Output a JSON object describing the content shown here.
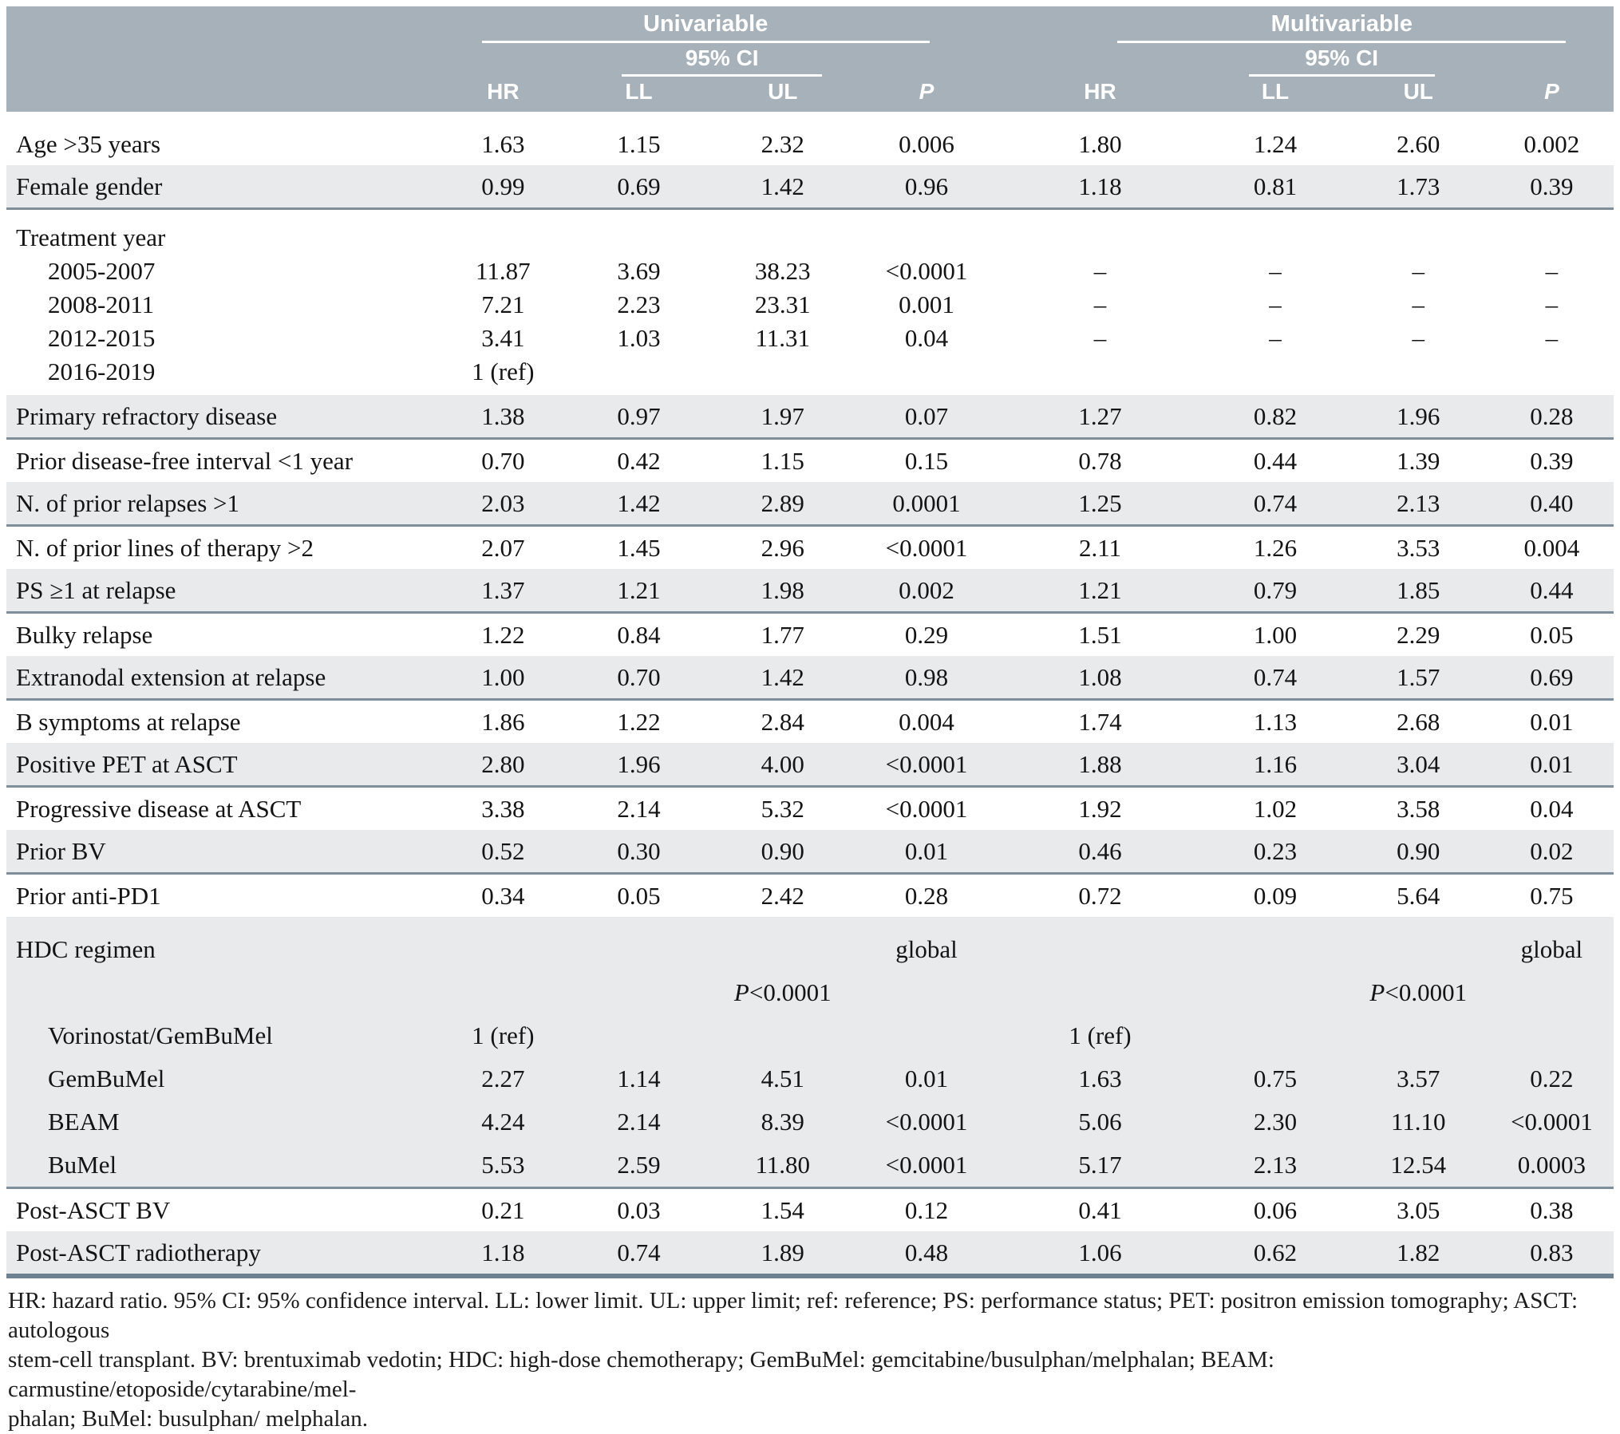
{
  "colors": {
    "header_bg": "#a7b1b9",
    "stripe_bg": "#e8eaec",
    "row_separator": "#7e8e9b",
    "bottom_border": "#6d8190"
  },
  "table": {
    "header": {
      "group_univariable": "Univariable",
      "group_multivariable": "Multivariable",
      "ci_label": "95% CI",
      "columns": {
        "hr": "HR",
        "ll": "LL",
        "ul": "UL",
        "p": "P"
      }
    },
    "rows": [
      {
        "label": "Age >35 years",
        "cells": [
          "1.63",
          "1.15",
          "2.32",
          "0.006",
          "1.80",
          "1.24",
          "2.60",
          "0.002"
        ],
        "shade": false,
        "pad_top": true
      },
      {
        "label": "Female gender",
        "cells": [
          "0.99",
          "0.69",
          "1.42",
          "0.96",
          "1.18",
          "0.81",
          "1.73",
          "0.39"
        ],
        "shade": true,
        "border": "thin"
      },
      {
        "label": "Treatment year",
        "cells": [
          "",
          "",
          "",
          "",
          "",
          "",
          "",
          ""
        ],
        "tight": true,
        "pad_top": true
      },
      {
        "label": "2005-2007",
        "indent": true,
        "cells": [
          "11.87",
          "3.69",
          "38.23",
          "<0.0001",
          "–",
          "–",
          "–",
          "–"
        ],
        "tight": true
      },
      {
        "label": "2008-2011",
        "indent": true,
        "cells": [
          "7.21",
          "2.23",
          "23.31",
          "0.001",
          "–",
          "–",
          "–",
          "–"
        ],
        "tight": true
      },
      {
        "label": "2012-2015",
        "indent": true,
        "cells": [
          "3.41",
          "1.03",
          "11.31",
          "0.04",
          "–",
          "–",
          "–",
          "–"
        ],
        "tight": true
      },
      {
        "label": "2016-2019",
        "indent": true,
        "cells": [
          "1 (ref)",
          "",
          "",
          "",
          "",
          "",
          "",
          ""
        ],
        "tight": true,
        "pad_bottom": true
      },
      {
        "label": "Primary refractory disease",
        "cells": [
          "1.38",
          "0.97",
          "1.97",
          "0.07",
          "1.27",
          "0.82",
          "1.96",
          "0.28"
        ],
        "shade": true,
        "border": "thin"
      },
      {
        "label": "Prior disease-free interval <1 year",
        "cells": [
          "0.70",
          "0.42",
          "1.15",
          "0.15",
          "0.78",
          "0.44",
          "1.39",
          "0.39"
        ]
      },
      {
        "label": "N. of prior relapses >1",
        "cells": [
          "2.03",
          "1.42",
          "2.89",
          "0.0001",
          "1.25",
          "0.74",
          "2.13",
          "0.40"
        ],
        "shade": true,
        "border": "thin"
      },
      {
        "label": "N. of prior lines of therapy >2",
        "cells": [
          "2.07",
          "1.45",
          "2.96",
          "<0.0001",
          "2.11",
          "1.26",
          "3.53",
          "0.004"
        ]
      },
      {
        "label": "PS ≥1 at relapse",
        "cells": [
          "1.37",
          "1.21",
          "1.98",
          "0.002",
          "1.21",
          "0.79",
          "1.85",
          "0.44"
        ],
        "shade": true,
        "border": "thin"
      },
      {
        "label": "Bulky relapse",
        "cells": [
          "1.22",
          "0.84",
          "1.77",
          "0.29",
          "1.51",
          "1.00",
          "2.29",
          "0.05"
        ]
      },
      {
        "label": "Extranodal extension at relapse",
        "cells": [
          "1.00",
          "0.70",
          "1.42",
          "0.98",
          "1.08",
          "0.74",
          "1.57",
          "0.69"
        ],
        "shade": true,
        "border": "thin"
      },
      {
        "label": "B symptoms at relapse",
        "cells": [
          "1.86",
          "1.22",
          "2.84",
          "0.004",
          "1.74",
          "1.13",
          "2.68",
          "0.01"
        ]
      },
      {
        "label": "Positive PET at ASCT",
        "cells": [
          "2.80",
          "1.96",
          "4.00",
          "<0.0001",
          "1.88",
          "1.16",
          "3.04",
          "0.01"
        ],
        "shade": true,
        "border": "thin"
      },
      {
        "label": "Progressive disease at ASCT",
        "cells": [
          "3.38",
          "2.14",
          "5.32",
          "<0.0001",
          "1.92",
          "1.02",
          "3.58",
          "0.04"
        ]
      },
      {
        "label": "Prior BV",
        "cells": [
          "0.52",
          "0.30",
          "0.90",
          "0.01",
          "0.46",
          "0.23",
          "0.90",
          "0.02"
        ],
        "shade": true,
        "border": "thin"
      },
      {
        "label": "Prior anti-PD1",
        "cells": [
          "0.34",
          "0.05",
          "2.42",
          "0.28",
          "0.72",
          "0.09",
          "5.64",
          "0.75"
        ]
      },
      {
        "label": "HDC regimen",
        "cells": [
          "",
          "",
          "",
          "global",
          "",
          "",
          "",
          "global"
        ],
        "shade": true,
        "roomy": true,
        "pad_top": true
      },
      {
        "label": "",
        "cells": [
          "",
          "",
          "P<0.0001",
          "",
          "",
          "",
          "P<0.0001",
          ""
        ],
        "shade": true,
        "roomy": true
      },
      {
        "label": "Vorinostat/GemBuMel",
        "indent": true,
        "cells": [
          "1 (ref)",
          "",
          "",
          "",
          "1 (ref)",
          "",
          "",
          ""
        ],
        "shade": true,
        "roomy": true
      },
      {
        "label": "GemBuMel",
        "indent": true,
        "cells": [
          "2.27",
          "1.14",
          "4.51",
          "0.01",
          "1.63",
          "0.75",
          "3.57",
          "0.22"
        ],
        "shade": true,
        "roomy": true
      },
      {
        "label": "BEAM",
        "indent": true,
        "cells": [
          "4.24",
          "2.14",
          "8.39",
          "<0.0001",
          "5.06",
          "2.30",
          "11.10",
          "<0.0001"
        ],
        "shade": true,
        "roomy": true
      },
      {
        "label": "BuMel",
        "indent": true,
        "cells": [
          "5.53",
          "2.59",
          "11.80",
          "<0.0001",
          "5.17",
          "2.13",
          "12.54",
          "0.0003"
        ],
        "shade": true,
        "roomy": true,
        "border": "thin"
      },
      {
        "label": "Post-ASCT BV",
        "cells": [
          "0.21",
          "0.03",
          "1.54",
          "0.12",
          "0.41",
          "0.06",
          "3.05",
          "0.38"
        ]
      },
      {
        "label": "Post-ASCT radiotherapy",
        "cells": [
          "1.18",
          "0.74",
          "1.89",
          "0.48",
          "1.06",
          "0.62",
          "1.82",
          "0.83"
        ],
        "shade": true,
        "border": "thick"
      }
    ],
    "footnote_lines": [
      "HR: hazard ratio. 95% CI: 95% confidence interval. LL: lower limit. UL: upper limit; ref: reference; PS: performance status; PET: positron emission tomography; ASCT: autologous",
      "stem-cell transplant. BV: brentuximab vedotin; HDC: high-dose chemotherapy; GemBuMel: gemcitabine/busulphan/melphalan; BEAM: carmustine/etoposide/cytarabine/mel-",
      "phalan; BuMel: busulphan/ melphalan."
    ]
  }
}
